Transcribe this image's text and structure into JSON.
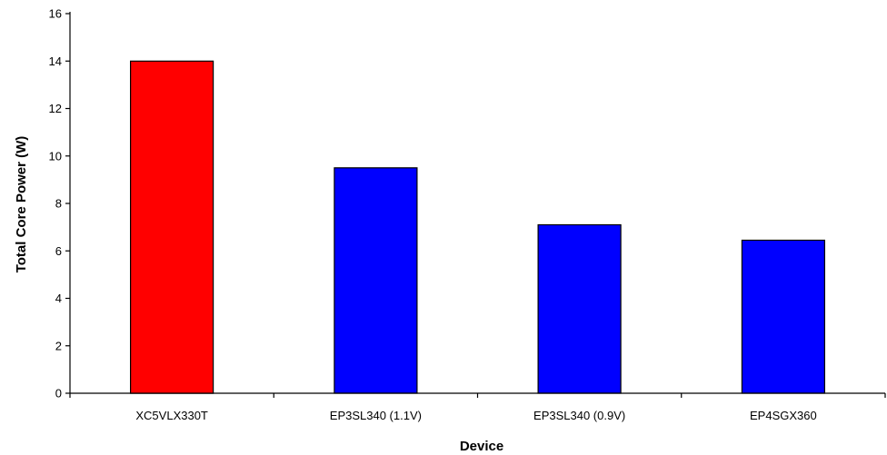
{
  "chart_data": {
    "type": "bar",
    "xlabel": "Device",
    "ylabel": "Total Core Power (W)",
    "categories": [
      "XC5VLX330T",
      "EP3SL340 (1.1V)",
      "EP3SL340 (0.9V)",
      "EP4SGX360"
    ],
    "values": [
      14.0,
      9.5,
      7.1,
      6.45
    ],
    "bar_colors": [
      "#ff0000",
      "#0000ff",
      "#0000ff",
      "#0000ff"
    ],
    "ylim": [
      0,
      16
    ],
    "yticks": [
      0,
      2,
      4,
      6,
      8,
      10,
      12,
      14,
      16
    ],
    "grid": false,
    "legend": "none"
  }
}
